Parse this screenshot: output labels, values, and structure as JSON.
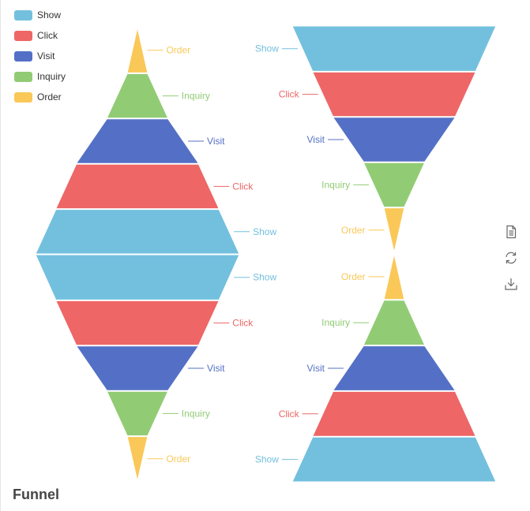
{
  "title": "Funnel",
  "legend": [
    {
      "name": "Show",
      "color": "#73c0de"
    },
    {
      "name": "Click",
      "color": "#ee6666"
    },
    {
      "name": "Visit",
      "color": "#5470c6"
    },
    {
      "name": "Inquiry",
      "color": "#91cc75"
    },
    {
      "name": "Order",
      "color": "#fac858"
    }
  ],
  "toolbox": [
    {
      "name": "data-view-icon"
    },
    {
      "name": "restore-icon"
    },
    {
      "name": "save-image-icon"
    }
  ],
  "chart_data": [
    {
      "type": "funnel",
      "shape": "diamond",
      "upper": {
        "sort": "ascending",
        "label_side": "right",
        "items": [
          {
            "name": "Order",
            "value": 20
          },
          {
            "name": "Inquiry",
            "value": 60
          },
          {
            "name": "Visit",
            "value": 120
          },
          {
            "name": "Click",
            "value": 160
          },
          {
            "name": "Show",
            "value": 200
          }
        ]
      },
      "lower": {
        "sort": "descending",
        "label_side": "right",
        "items": [
          {
            "name": "Show",
            "value": 200
          },
          {
            "name": "Click",
            "value": 160
          },
          {
            "name": "Visit",
            "value": 120
          },
          {
            "name": "Inquiry",
            "value": 60
          },
          {
            "name": "Order",
            "value": 20
          }
        ]
      }
    },
    {
      "type": "funnel",
      "shape": "hourglass",
      "upper": {
        "sort": "descending",
        "label_side": "left",
        "items": [
          {
            "name": "Show",
            "value": 200
          },
          {
            "name": "Click",
            "value": 160
          },
          {
            "name": "Visit",
            "value": 120
          },
          {
            "name": "Inquiry",
            "value": 60
          },
          {
            "name": "Order",
            "value": 20
          }
        ]
      },
      "lower": {
        "sort": "ascending",
        "label_side": "left",
        "items": [
          {
            "name": "Order",
            "value": 20
          },
          {
            "name": "Inquiry",
            "value": 60
          },
          {
            "name": "Visit",
            "value": 120
          },
          {
            "name": "Click",
            "value": 160
          },
          {
            "name": "Show",
            "value": 200
          }
        ]
      }
    }
  ]
}
